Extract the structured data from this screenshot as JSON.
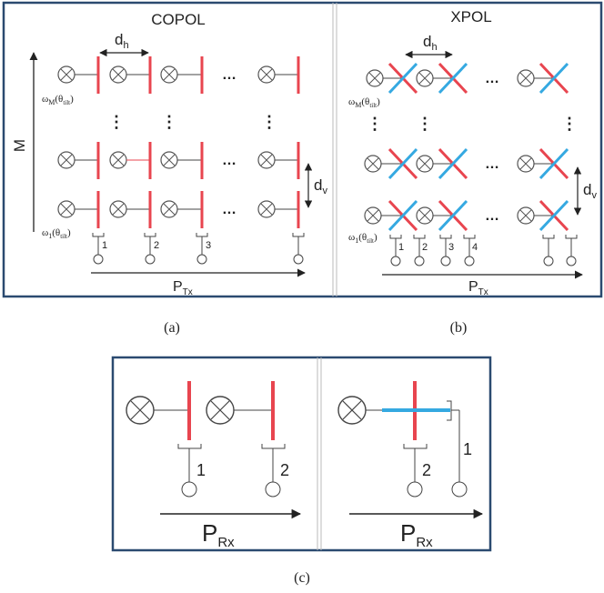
{
  "panel_a": {
    "title": "COPOL",
    "caption": "(a)",
    "axis_vertical": "M",
    "axis_horizontal_base": "P",
    "axis_horizontal_sub": "Tx",
    "dh_base": "d",
    "dh_sub": "h",
    "dv_base": "d",
    "dv_sub": "v",
    "weight_top_base": "ω",
    "weight_top_sub": "M",
    "weight_bottom_base": "ω",
    "weight_bottom_sub": "1",
    "theta_base": "θ",
    "theta_sub": "tilt",
    "port_labels": [
      "1",
      "2",
      "3"
    ],
    "ellipsis_h": "…",
    "ellipsis_v": "⋮"
  },
  "panel_b": {
    "title": "XPOL",
    "caption": "(b)",
    "axis_horizontal_base": "P",
    "axis_horizontal_sub": "Tx",
    "dh_base": "d",
    "dh_sub": "h",
    "dv_base": "d",
    "dv_sub": "v",
    "weight_top_base": "ω",
    "weight_top_sub": "M",
    "weight_bottom_base": "ω",
    "weight_bottom_sub": "1",
    "theta_base": "θ",
    "theta_sub": "tilt",
    "port_labels": [
      "1",
      "2",
      "3",
      "4"
    ],
    "ellipsis_h": "…",
    "ellipsis_v": "⋮"
  },
  "panel_c": {
    "caption": "(c)",
    "left_ports": [
      "1",
      "2"
    ],
    "right_ports": [
      "2",
      "1"
    ],
    "axis_base": "P",
    "axis_sub": "Rx"
  },
  "colors": {
    "frame": "#2b4a70",
    "copol_element": "#e8454f",
    "xpol_element": "#35a9e1",
    "line": "#333333"
  }
}
